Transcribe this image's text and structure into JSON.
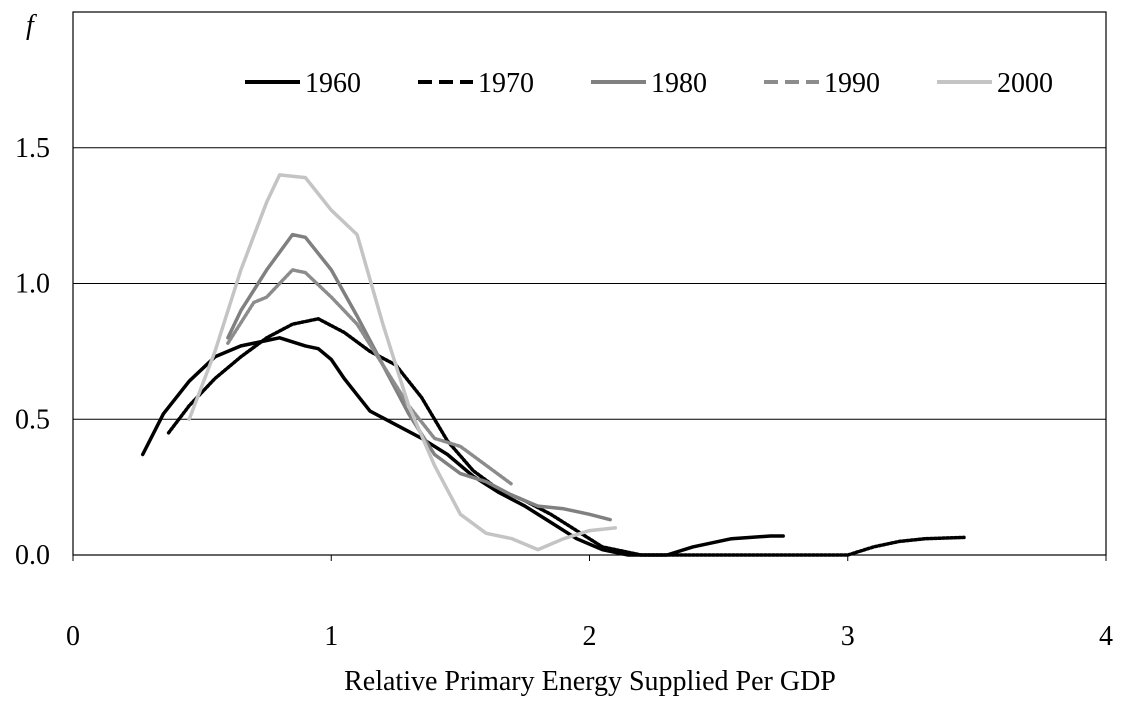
{
  "chart_data": {
    "type": "line",
    "x_label": "Relative Primary Energy Supplied Per GDP",
    "y_label": "f",
    "xlim": [
      0,
      4
    ],
    "xticks": [
      0,
      1,
      2,
      3,
      4
    ],
    "ylim": [
      0,
      2
    ],
    "yticks": [
      {
        "value": 0,
        "label": "0.0"
      },
      0.5,
      {
        "value": 1,
        "label": "1.0"
      },
      1.5
    ],
    "grid": true,
    "legend": "top",
    "series": [
      {
        "name": "1960",
        "color": "#000000",
        "linestyle": "solid",
        "x": [
          0.27,
          0.35,
          0.45,
          0.55,
          0.65,
          0.75,
          0.8,
          0.9,
          0.95,
          1.0,
          1.05,
          1.1,
          1.15,
          1.25,
          1.35,
          1.45,
          1.55,
          1.65,
          1.75,
          1.85,
          1.95,
          2.05,
          2.15,
          2.3,
          2.4,
          2.55,
          2.7,
          2.75
        ],
        "values": [
          0.37,
          0.52,
          0.64,
          0.73,
          0.77,
          0.79,
          0.8,
          0.77,
          0.76,
          0.72,
          0.65,
          0.59,
          0.53,
          0.48,
          0.43,
          0.37,
          0.29,
          0.23,
          0.18,
          0.12,
          0.06,
          0.02,
          0,
          0,
          0.03,
          0.06,
          0.07,
          0.07
        ]
      },
      {
        "name": "1970",
        "color": "#000000",
        "linestyle": "dashed",
        "x": [
          0.37,
          0.45,
          0.55,
          0.65,
          0.75,
          0.85,
          0.95,
          1.05,
          1.15,
          1.25,
          1.35,
          1.45,
          1.55,
          1.65,
          1.75,
          1.85,
          1.95,
          2.05,
          2.2,
          2.3,
          3.0,
          3.1,
          3.2,
          3.3,
          3.45
        ],
        "values": [
          0.45,
          0.55,
          0.65,
          0.73,
          0.8,
          0.85,
          0.87,
          0.82,
          0.75,
          0.7,
          0.58,
          0.42,
          0.31,
          0.24,
          0.2,
          0.15,
          0.09,
          0.03,
          0,
          0,
          0,
          0.03,
          0.05,
          0.06,
          0.065
        ]
      },
      {
        "name": "1980",
        "color": "#808080",
        "linestyle": "solid",
        "x": [
          0.6,
          0.65,
          0.75,
          0.85,
          0.9,
          1.0,
          1.1,
          1.2,
          1.3,
          1.4,
          1.5,
          1.6,
          1.7,
          1.8,
          1.9,
          2.0,
          2.08
        ],
        "values": [
          0.8,
          0.9,
          1.05,
          1.18,
          1.17,
          1.05,
          0.88,
          0.7,
          0.52,
          0.37,
          0.3,
          0.27,
          0.22,
          0.18,
          0.17,
          0.15,
          0.13
        ]
      },
      {
        "name": "1990",
        "color": "#8c8c8c",
        "linestyle": "dashed",
        "x": [
          0.6,
          0.7,
          0.75,
          0.85,
          0.9,
          1.0,
          1.1,
          1.2,
          1.3,
          1.4,
          1.5,
          1.6,
          1.7
        ],
        "values": [
          0.78,
          0.93,
          0.95,
          1.05,
          1.04,
          0.95,
          0.85,
          0.7,
          0.55,
          0.43,
          0.4,
          0.33,
          0.26
        ]
      },
      {
        "name": "2000",
        "color": "#c4c4c4",
        "linestyle": "solid",
        "x": [
          0.45,
          0.55,
          0.65,
          0.75,
          0.8,
          0.9,
          1.0,
          1.1,
          1.2,
          1.3,
          1.4,
          1.5,
          1.6,
          1.7,
          1.8,
          1.9,
          2.0,
          2.1
        ],
        "values": [
          0.5,
          0.75,
          1.05,
          1.3,
          1.4,
          1.39,
          1.27,
          1.18,
          0.85,
          0.55,
          0.33,
          0.15,
          0.08,
          0.06,
          0.02,
          0.06,
          0.09,
          0.1
        ]
      }
    ]
  }
}
